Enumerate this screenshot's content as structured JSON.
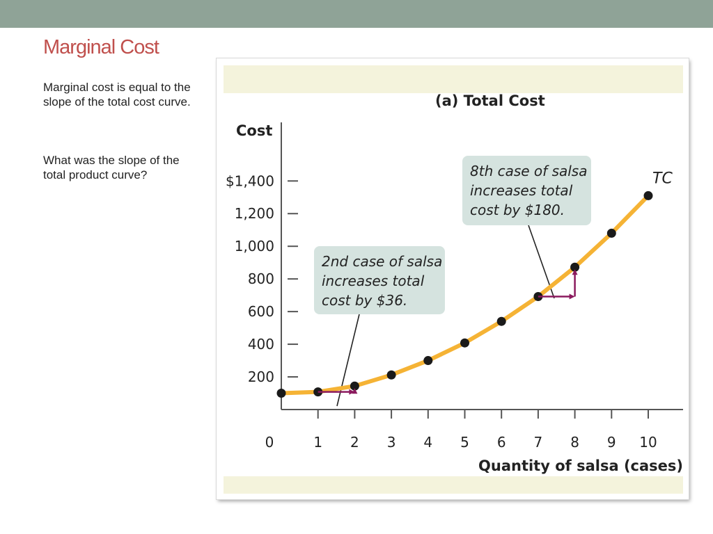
{
  "slide": {
    "title": "Marginal Cost",
    "paragraph1": "Marginal cost is equal to the slope of the total cost curve.",
    "paragraph2": "What was the slope of the total product curve?"
  },
  "colors": {
    "accent_title": "#c0504d",
    "top_bar": "#8fa397",
    "curve": "#f5b335",
    "marker": "#1a1a1a",
    "arrow": "#8b1a5e",
    "callout_bg": "#d5e3df",
    "panel_band": "#f4f3dc"
  },
  "chart_data": {
    "type": "line",
    "title": "(a) Total Cost",
    "xlabel": "Quantity of salsa (cases)",
    "ylabel": "Cost",
    "x_ticks": [
      "0",
      "1",
      "2",
      "3",
      "4",
      "5",
      "6",
      "7",
      "8",
      "9",
      "10"
    ],
    "y_ticks": [
      "200",
      "400",
      "600",
      "800",
      "1,000",
      "1,200",
      "$1,400"
    ],
    "y_tick_values": [
      200,
      400,
      600,
      800,
      1000,
      1200,
      1400
    ],
    "xlim": [
      0,
      10
    ],
    "ylim": [
      0,
      1400
    ],
    "series": [
      {
        "name": "TC",
        "x": [
          0,
          1,
          2,
          3,
          4,
          5,
          6,
          7,
          8,
          9,
          10
        ],
        "y": [
          100,
          108,
          144,
          212,
          300,
          408,
          540,
          692,
          872,
          1080,
          1310
        ]
      }
    ],
    "annotations": [
      {
        "lines": [
          "2nd case of salsa",
          "increases total",
          "cost by $36."
        ],
        "from_x": 1,
        "to_x": 2,
        "increase": 36
      },
      {
        "lines": [
          "8th case of salsa",
          "increases total",
          "cost by $180."
        ],
        "from_x": 7,
        "to_x": 8,
        "increase": 180
      }
    ]
  }
}
